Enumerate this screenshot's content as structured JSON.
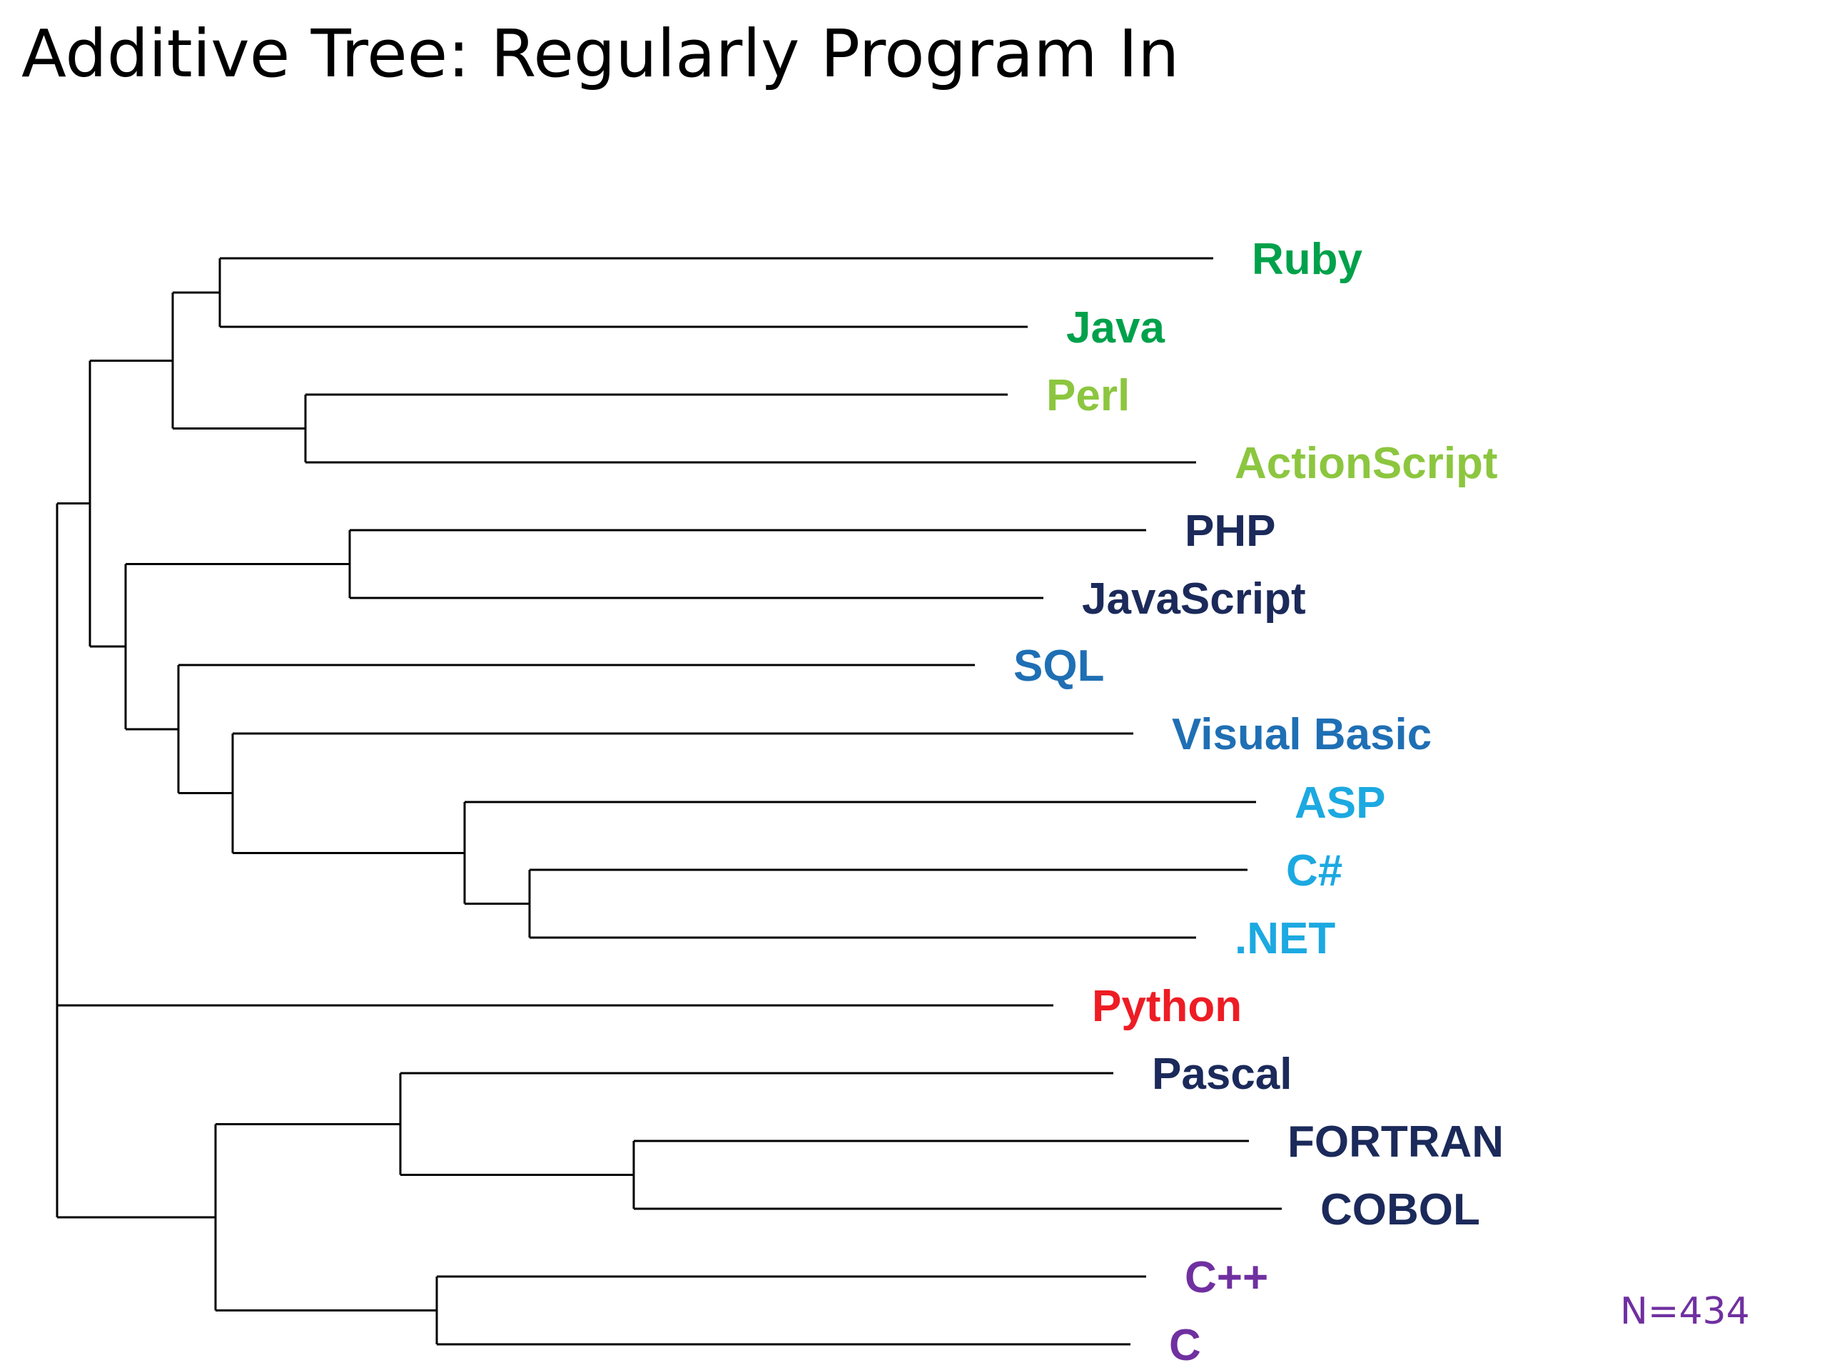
{
  "title": "Additive Tree: Regularly Program In",
  "sample_size": "N=434",
  "colors": {
    "dark_green": "#00A14B",
    "light_green": "#8CC63F",
    "navy": "#1B2A5A",
    "blue": "#1F6FB4",
    "cyan": "#1CA9E1",
    "red": "#EE1C24",
    "purple": "#7030A0",
    "branch": "#000000"
  },
  "tree": {
    "type": "additive-tree",
    "leaves": [
      {
        "label": "Ruby",
        "color": "#00A14B"
      },
      {
        "label": "Java",
        "color": "#00A14B"
      },
      {
        "label": "Perl",
        "color": "#8CC63F"
      },
      {
        "label": "ActionScript",
        "color": "#8CC63F"
      },
      {
        "label": "PHP",
        "color": "#1B2A5A"
      },
      {
        "label": "JavaScript",
        "color": "#1B2A5A"
      },
      {
        "label": "SQL",
        "color": "#1F6FB4"
      },
      {
        "label": "Visual Basic",
        "color": "#1F6FB4"
      },
      {
        "label": "ASP",
        "color": "#1CA9E1"
      },
      {
        "label": "C#",
        "color": "#1CA9E1"
      },
      {
        "label": ".NET",
        "color": "#1CA9E1"
      },
      {
        "label": "Python",
        "color": "#EE1C24"
      },
      {
        "label": "Pascal",
        "color": "#1B2A5A"
      },
      {
        "label": "FORTRAN",
        "color": "#1B2A5A"
      },
      {
        "label": "COBOL",
        "color": "#1B2A5A"
      },
      {
        "label": "C++",
        "color": "#7030A0"
      },
      {
        "label": "C",
        "color": "#7030A0"
      }
    ]
  }
}
